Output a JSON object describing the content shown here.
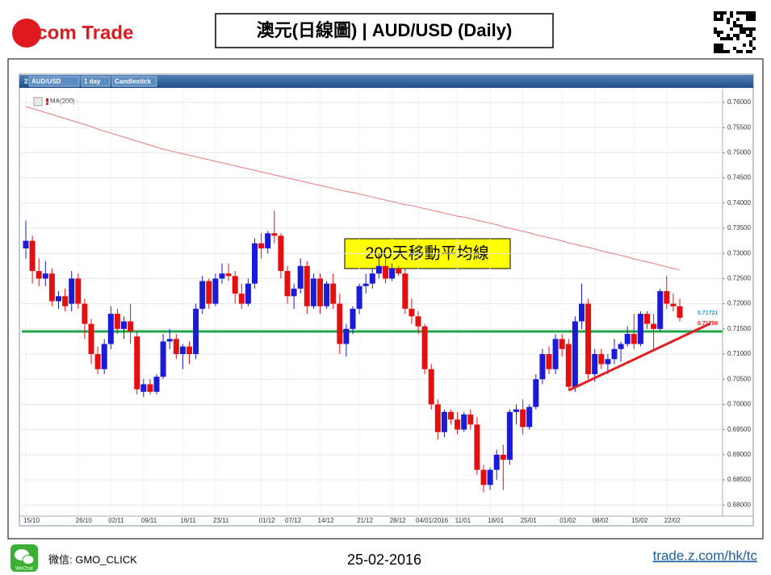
{
  "header": {
    "logo": "Z.com Trade",
    "title": "澳元(日線圖) | AUD/USD (Daily)"
  },
  "toolbar": [
    "2:",
    "AUD/USD",
    "1 day",
    "Candlestick"
  ],
  "chart_data": {
    "type": "candlestick",
    "categories": [
      "15/10",
      null,
      null,
      null,
      null,
      null,
      null,
      null,
      "26/10",
      null,
      null,
      null,
      null,
      "02/11",
      null,
      null,
      null,
      null,
      "09/11",
      null,
      null,
      null,
      null,
      null,
      "16/11",
      null,
      null,
      null,
      null,
      "23/11",
      null,
      null,
      null,
      null,
      null,
      null,
      "01/12",
      null,
      null,
      null,
      "07/12",
      null,
      null,
      null,
      null,
      "14/12",
      null,
      null,
      null,
      null,
      null,
      "21/12",
      null,
      null,
      null,
      null,
      "28/12",
      null,
      null,
      null,
      "04/01/2016",
      null,
      null,
      null,
      null,
      null,
      "11/01",
      null,
      null,
      null,
      null,
      "18/01",
      null,
      null,
      null,
      null,
      "25/01",
      null,
      null,
      null,
      null,
      null,
      "01/02",
      null,
      null,
      null,
      null,
      "08/02",
      null,
      null,
      null,
      null,
      null,
      "15/02",
      null,
      null,
      null,
      null,
      "22/02",
      null,
      null
    ],
    "open": [
      0.731,
      0.7325,
      0.7265,
      0.725,
      0.726,
      0.7205,
      0.7215,
      0.72,
      0.725,
      0.72,
      0.716,
      0.71,
      0.707,
      0.712,
      0.718,
      0.715,
      0.7165,
      0.7135,
      0.7025,
      0.704,
      0.7025,
      0.7055,
      0.7125,
      0.713,
      0.71,
      0.7115,
      0.71,
      0.719,
      0.7245,
      0.72,
      0.725,
      0.726,
      0.7255,
      0.722,
      0.72,
      0.724,
      0.732,
      0.731,
      0.734,
      0.7335,
      0.7265,
      0.7215,
      0.723,
      0.7275,
      0.7195,
      0.725,
      0.7195,
      0.724,
      0.72,
      0.712,
      0.715,
      0.719,
      0.7235,
      0.724,
      0.726,
      0.7275,
      0.725,
      0.727,
      0.726,
      0.719,
      0.7175,
      0.7155,
      0.707,
      0.7,
      0.6945,
      0.6985,
      0.697,
      0.695,
      0.698,
      0.696,
      0.687,
      0.684,
      0.687,
      0.69,
      0.689,
      0.6985,
      0.699,
      0.6955,
      0.6995,
      0.705,
      0.71,
      0.707,
      0.713,
      0.712,
      0.7035,
      0.7165,
      0.72,
      0.706,
      0.71,
      0.708,
      0.709,
      0.711,
      0.712,
      0.714,
      0.712,
      0.718,
      0.716,
      0.715,
      0.7225,
      0.72,
      0.7195
    ],
    "high": [
      0.7365,
      0.7335,
      0.729,
      0.7285,
      0.727,
      0.7225,
      0.723,
      0.7265,
      0.726,
      0.721,
      0.717,
      0.7115,
      0.713,
      0.7195,
      0.719,
      0.7175,
      0.72,
      0.7145,
      0.705,
      0.705,
      0.706,
      0.714,
      0.715,
      0.714,
      0.712,
      0.7125,
      0.72,
      0.7255,
      0.725,
      0.726,
      0.728,
      0.728,
      0.7265,
      0.724,
      0.725,
      0.733,
      0.734,
      0.7345,
      0.7385,
      0.734,
      0.7275,
      0.724,
      0.729,
      0.7285,
      0.726,
      0.726,
      0.7245,
      0.726,
      0.722,
      0.716,
      0.7195,
      0.724,
      0.726,
      0.727,
      0.73,
      0.729,
      0.728,
      0.7275,
      0.727,
      0.721,
      0.7185,
      0.716,
      0.708,
      0.701,
      0.699,
      0.699,
      0.6985,
      0.6985,
      0.699,
      0.6975,
      0.688,
      0.6875,
      0.691,
      0.692,
      0.699,
      0.7,
      0.701,
      0.7,
      0.706,
      0.711,
      0.7115,
      0.714,
      0.714,
      0.713,
      0.7175,
      0.724,
      0.721,
      0.711,
      0.711,
      0.71,
      0.713,
      0.7125,
      0.7155,
      0.718,
      0.7185,
      0.7185,
      0.718,
      0.723,
      0.7255,
      0.722,
      0.721
    ],
    "low": [
      0.729,
      0.724,
      0.7235,
      0.7235,
      0.7195,
      0.719,
      0.7185,
      0.7185,
      0.719,
      0.713,
      0.708,
      0.706,
      0.706,
      0.711,
      0.714,
      0.713,
      0.712,
      0.702,
      0.7015,
      0.702,
      0.702,
      0.705,
      0.711,
      0.709,
      0.707,
      0.708,
      0.709,
      0.718,
      0.719,
      0.7195,
      0.724,
      0.7245,
      0.72,
      0.719,
      0.7195,
      0.723,
      0.729,
      0.73,
      0.732,
      0.725,
      0.72,
      0.719,
      0.722,
      0.718,
      0.719,
      0.718,
      0.719,
      0.719,
      0.71,
      0.7095,
      0.714,
      0.718,
      0.722,
      0.723,
      0.725,
      0.724,
      0.7245,
      0.7255,
      0.718,
      0.716,
      0.714,
      0.706,
      0.699,
      0.693,
      0.6935,
      0.696,
      0.694,
      0.6945,
      0.695,
      0.686,
      0.6825,
      0.683,
      0.685,
      0.683,
      0.688,
      0.696,
      0.694,
      0.695,
      0.699,
      0.704,
      0.706,
      0.706,
      0.7095,
      0.703,
      0.7025,
      0.715,
      0.705,
      0.7045,
      0.707,
      0.706,
      0.708,
      0.7085,
      0.7115,
      0.711,
      0.7115,
      0.715,
      0.711,
      0.7145,
      0.719,
      0.7185,
      0.7165
    ],
    "close": [
      0.7325,
      0.7265,
      0.725,
      0.726,
      0.7205,
      0.7215,
      0.7195,
      0.725,
      0.72,
      0.716,
      0.71,
      0.707,
      0.712,
      0.718,
      0.715,
      0.7165,
      0.7145,
      0.703,
      0.704,
      0.7025,
      0.7055,
      0.7125,
      0.713,
      0.71,
      0.7115,
      0.71,
      0.719,
      0.7245,
      0.72,
      0.725,
      0.726,
      0.7255,
      0.722,
      0.72,
      0.724,
      0.732,
      0.731,
      0.734,
      0.7335,
      0.7265,
      0.7215,
      0.723,
      0.7275,
      0.7195,
      0.725,
      0.7195,
      0.724,
      0.72,
      0.712,
      0.715,
      0.719,
      0.7235,
      0.724,
      0.726,
      0.7275,
      0.725,
      0.727,
      0.726,
      0.719,
      0.7175,
      0.7155,
      0.707,
      0.7,
      0.6945,
      0.6985,
      0.697,
      0.695,
      0.698,
      0.696,
      0.687,
      0.684,
      0.687,
      0.69,
      0.689,
      0.6985,
      0.699,
      0.6955,
      0.6995,
      0.705,
      0.71,
      0.707,
      0.713,
      0.711,
      0.7035,
      0.7165,
      0.72,
      0.706,
      0.71,
      0.708,
      0.709,
      0.711,
      0.712,
      0.714,
      0.712,
      0.718,
      0.716,
      0.715,
      0.7225,
      0.72,
      0.7195,
      0.7172
    ],
    "up_color": "#1a1ad8",
    "down_color": "#e41010",
    "ma": {
      "name": "MA(200)",
      "color": "#e87a7a",
      "values": [
        0.7592,
        0.7588,
        0.7584,
        0.758,
        0.7576,
        0.7572,
        0.7568,
        0.7564,
        0.756,
        0.7556,
        0.7552,
        0.7547,
        0.7543,
        0.7539,
        0.7535,
        0.7531,
        0.7527,
        0.7523,
        0.7519,
        0.7515,
        0.7511,
        0.7507,
        0.7504,
        0.7501,
        0.7498,
        0.7495,
        0.7492,
        0.7489,
        0.7486,
        0.7483,
        0.748,
        0.7477,
        0.7474,
        0.7471,
        0.7468,
        0.7465,
        0.7462,
        0.7459,
        0.7456,
        0.7453,
        0.745,
        0.7447,
        0.7444,
        0.7441,
        0.7438,
        0.7435,
        0.7432,
        0.7429,
        0.7426,
        0.7423,
        0.7421,
        0.7418,
        0.7415,
        0.7412,
        0.7409,
        0.7406,
        0.7403,
        0.74,
        0.7397,
        0.7395,
        0.7392,
        0.7389,
        0.7386,
        0.7383,
        0.738,
        0.7377,
        0.7374,
        0.7372,
        0.7369,
        0.7366,
        0.7363,
        0.736,
        0.7357,
        0.7353,
        0.735,
        0.7347,
        0.7344,
        0.7341,
        0.7337,
        0.7334,
        0.7331,
        0.7328,
        0.7325,
        0.7321,
        0.7318,
        0.7315,
        0.7312,
        0.7309,
        0.7305,
        0.7302,
        0.7299,
        0.7296,
        0.7293,
        0.7289,
        0.7286,
        0.7283,
        0.728,
        0.7277,
        0.7273,
        0.727,
        0.7267
      ]
    },
    "ylim": [
      0.6778,
      0.7624
    ],
    "yticks": [
      {
        "value": 0.68,
        "label": "0.68000"
      },
      {
        "value": 0.685,
        "label": "0.68500"
      },
      {
        "value": 0.69,
        "label": "0.69000"
      },
      {
        "value": 0.695,
        "label": "0.69500"
      },
      {
        "value": 0.7,
        "label": "0.70000"
      },
      {
        "value": 0.705,
        "label": "0.70500"
      },
      {
        "value": 0.71,
        "label": "0.71000"
      },
      {
        "value": 0.715,
        "label": "0.71500"
      },
      {
        "value": 0.72,
        "label": "0.72000"
      },
      {
        "value": 0.725,
        "label": "0.72500"
      },
      {
        "value": 0.73,
        "label": "0.73000"
      },
      {
        "value": 0.735,
        "label": "0.73500"
      },
      {
        "value": 0.74,
        "label": "0.74000"
      },
      {
        "value": 0.745,
        "label": "0.74500"
      },
      {
        "value": 0.75,
        "label": "0.75000"
      },
      {
        "value": 0.755,
        "label": "0.75500"
      },
      {
        "value": 0.76,
        "label": "0.76000"
      }
    ],
    "grid": true,
    "annotation": "200天移動平均線",
    "support_level": {
      "value": 0.7145,
      "color": "#1fa84a"
    },
    "trendline": {
      "x": [
        83,
        104.7
      ],
      "y": [
        0.7028,
        0.7161
      ],
      "color": "#e02020"
    },
    "last_prices": [
      {
        "value": 0.71721,
        "color": "#3a9ad0"
      },
      {
        "value": 0.71706,
        "color": "#e02020"
      }
    ]
  },
  "footer": {
    "icon_label": "WeChat",
    "wechat": "微信: GMO_CLICK",
    "date": "25-02-2016",
    "url": "trade.z.com/hk/tc"
  }
}
